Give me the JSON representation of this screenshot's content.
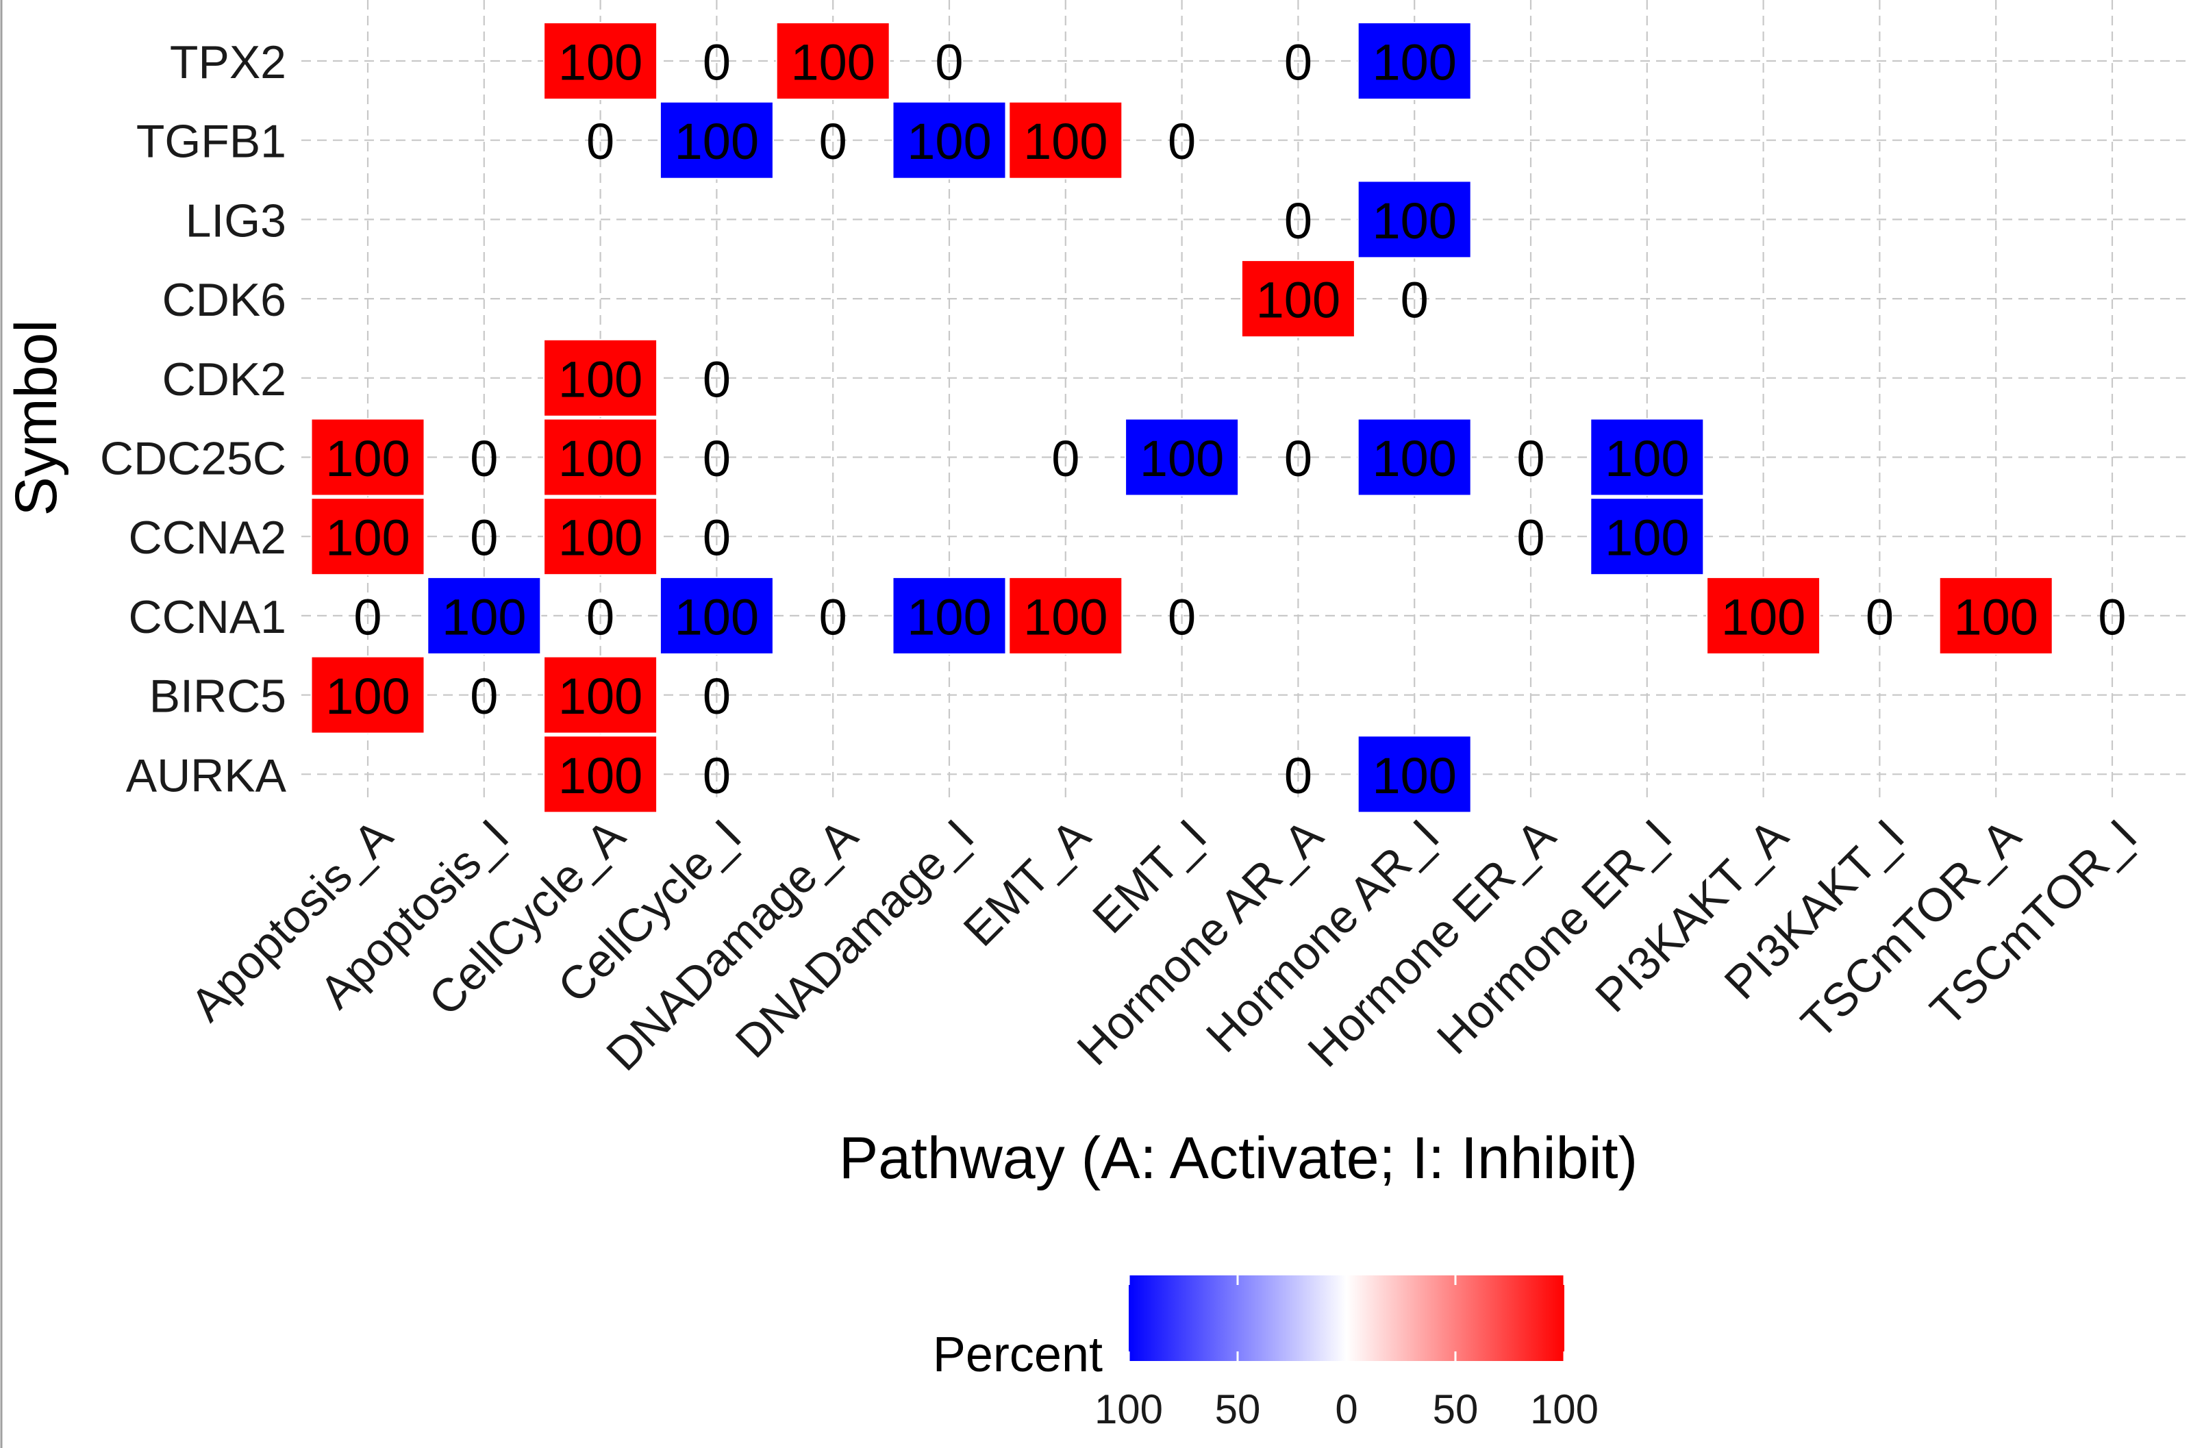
{
  "chart_data": {
    "type": "heatmap",
    "xlabel": "Pathway (A: Activate; I: Inhibit)",
    "ylabel": "Symbol",
    "x_categories": [
      "Apoptosis_A",
      "Apoptosis_I",
      "CellCycle_A",
      "CellCycle_I",
      "DNADamage_A",
      "DNADamage_I",
      "EMT_A",
      "EMT_I",
      "Hormone AR_A",
      "Hormone AR_I",
      "Hormone ER_A",
      "Hormone ER_I",
      "PI3KAKT_A",
      "PI3KAKT_I",
      "TSCmTOR_A",
      "TSCmTOR_I"
    ],
    "y_categories": [
      "TPX2",
      "TGFB1",
      "LIG3",
      "CDK6",
      "CDK2",
      "CDC25C",
      "CCNA2",
      "CCNA1",
      "BIRC5",
      "AURKA"
    ],
    "cells": [
      {
        "y": "TPX2",
        "x": "CellCycle_A",
        "value": 100,
        "direction": "activate",
        "label": "100"
      },
      {
        "y": "TPX2",
        "x": "CellCycle_I",
        "value": 0,
        "direction": "inhibit",
        "label": "0"
      },
      {
        "y": "TPX2",
        "x": "DNADamage_A",
        "value": 100,
        "direction": "activate",
        "label": "100"
      },
      {
        "y": "TPX2",
        "x": "DNADamage_I",
        "value": 0,
        "direction": "inhibit",
        "label": "0"
      },
      {
        "y": "TPX2",
        "x": "Hormone AR_A",
        "value": 0,
        "direction": "activate",
        "label": "0"
      },
      {
        "y": "TPX2",
        "x": "Hormone AR_I",
        "value": 100,
        "direction": "inhibit",
        "label": "100"
      },
      {
        "y": "TGFB1",
        "x": "CellCycle_A",
        "value": 0,
        "direction": "activate",
        "label": "0"
      },
      {
        "y": "TGFB1",
        "x": "CellCycle_I",
        "value": 100,
        "direction": "inhibit",
        "label": "100"
      },
      {
        "y": "TGFB1",
        "x": "DNADamage_A",
        "value": 0,
        "direction": "activate",
        "label": "0"
      },
      {
        "y": "TGFB1",
        "x": "DNADamage_I",
        "value": 100,
        "direction": "inhibit",
        "label": "100"
      },
      {
        "y": "TGFB1",
        "x": "EMT_A",
        "value": 100,
        "direction": "activate",
        "label": "100"
      },
      {
        "y": "TGFB1",
        "x": "EMT_I",
        "value": 0,
        "direction": "inhibit",
        "label": "0"
      },
      {
        "y": "LIG3",
        "x": "Hormone AR_A",
        "value": 0,
        "direction": "activate",
        "label": "0"
      },
      {
        "y": "LIG3",
        "x": "Hormone AR_I",
        "value": 100,
        "direction": "inhibit",
        "label": "100"
      },
      {
        "y": "CDK6",
        "x": "Hormone AR_A",
        "value": 100,
        "direction": "activate",
        "label": "100"
      },
      {
        "y": "CDK6",
        "x": "Hormone AR_I",
        "value": 0,
        "direction": "inhibit",
        "label": "0"
      },
      {
        "y": "CDK2",
        "x": "CellCycle_A",
        "value": 100,
        "direction": "activate",
        "label": "100"
      },
      {
        "y": "CDK2",
        "x": "CellCycle_I",
        "value": 0,
        "direction": "inhibit",
        "label": "0"
      },
      {
        "y": "CDC25C",
        "x": "Apoptosis_A",
        "value": 100,
        "direction": "activate",
        "label": "100"
      },
      {
        "y": "CDC25C",
        "x": "Apoptosis_I",
        "value": 0,
        "direction": "inhibit",
        "label": "0"
      },
      {
        "y": "CDC25C",
        "x": "CellCycle_A",
        "value": 100,
        "direction": "activate",
        "label": "100"
      },
      {
        "y": "CDC25C",
        "x": "CellCycle_I",
        "value": 0,
        "direction": "inhibit",
        "label": "0"
      },
      {
        "y": "CDC25C",
        "x": "EMT_A",
        "value": 0,
        "direction": "activate",
        "label": "0"
      },
      {
        "y": "CDC25C",
        "x": "EMT_I",
        "value": 100,
        "direction": "inhibit",
        "label": "100"
      },
      {
        "y": "CDC25C",
        "x": "Hormone AR_A",
        "value": 0,
        "direction": "activate",
        "label": "0"
      },
      {
        "y": "CDC25C",
        "x": "Hormone AR_I",
        "value": 100,
        "direction": "inhibit",
        "label": "100"
      },
      {
        "y": "CDC25C",
        "x": "Hormone ER_A",
        "value": 0,
        "direction": "activate",
        "label": "0"
      },
      {
        "y": "CDC25C",
        "x": "Hormone ER_I",
        "value": 100,
        "direction": "inhibit",
        "label": "100"
      },
      {
        "y": "CCNA2",
        "x": "Apoptosis_A",
        "value": 100,
        "direction": "activate",
        "label": "100"
      },
      {
        "y": "CCNA2",
        "x": "Apoptosis_I",
        "value": 0,
        "direction": "inhibit",
        "label": "0"
      },
      {
        "y": "CCNA2",
        "x": "CellCycle_A",
        "value": 100,
        "direction": "activate",
        "label": "100"
      },
      {
        "y": "CCNA2",
        "x": "CellCycle_I",
        "value": 0,
        "direction": "inhibit",
        "label": "0"
      },
      {
        "y": "CCNA2",
        "x": "Hormone ER_A",
        "value": 0,
        "direction": "activate",
        "label": "0"
      },
      {
        "y": "CCNA2",
        "x": "Hormone ER_I",
        "value": 100,
        "direction": "inhibit",
        "label": "100"
      },
      {
        "y": "CCNA1",
        "x": "Apoptosis_A",
        "value": 0,
        "direction": "activate",
        "label": "0"
      },
      {
        "y": "CCNA1",
        "x": "Apoptosis_I",
        "value": 100,
        "direction": "inhibit",
        "label": "100"
      },
      {
        "y": "CCNA1",
        "x": "CellCycle_A",
        "value": 0,
        "direction": "activate",
        "label": "0"
      },
      {
        "y": "CCNA1",
        "x": "CellCycle_I",
        "value": 100,
        "direction": "inhibit",
        "label": "100"
      },
      {
        "y": "CCNA1",
        "x": "DNADamage_A",
        "value": 0,
        "direction": "activate",
        "label": "0"
      },
      {
        "y": "CCNA1",
        "x": "DNADamage_I",
        "value": 100,
        "direction": "inhibit",
        "label": "100"
      },
      {
        "y": "CCNA1",
        "x": "EMT_A",
        "value": 100,
        "direction": "activate",
        "label": "100"
      },
      {
        "y": "CCNA1",
        "x": "EMT_I",
        "value": 0,
        "direction": "inhibit",
        "label": "0"
      },
      {
        "y": "CCNA1",
        "x": "PI3KAKT_A",
        "value": 100,
        "direction": "activate",
        "label": "100"
      },
      {
        "y": "CCNA1",
        "x": "PI3KAKT_I",
        "value": 0,
        "direction": "inhibit",
        "label": "0"
      },
      {
        "y": "CCNA1",
        "x": "TSCmTOR_A",
        "value": 100,
        "direction": "activate",
        "label": "100"
      },
      {
        "y": "CCNA1",
        "x": "TSCmTOR_I",
        "value": 0,
        "direction": "inhibit",
        "label": "0"
      },
      {
        "y": "BIRC5",
        "x": "Apoptosis_A",
        "value": 100,
        "direction": "activate",
        "label": "100"
      },
      {
        "y": "BIRC5",
        "x": "Apoptosis_I",
        "value": 0,
        "direction": "inhibit",
        "label": "0"
      },
      {
        "y": "BIRC5",
        "x": "CellCycle_A",
        "value": 100,
        "direction": "activate",
        "label": "100"
      },
      {
        "y": "BIRC5",
        "x": "CellCycle_I",
        "value": 0,
        "direction": "inhibit",
        "label": "0"
      },
      {
        "y": "AURKA",
        "x": "CellCycle_A",
        "value": 100,
        "direction": "activate",
        "label": "100"
      },
      {
        "y": "AURKA",
        "x": "CellCycle_I",
        "value": 0,
        "direction": "inhibit",
        "label": "0"
      },
      {
        "y": "AURKA",
        "x": "Hormone AR_A",
        "value": 0,
        "direction": "activate",
        "label": "0"
      },
      {
        "y": "AURKA",
        "x": "Hormone AR_I",
        "value": 100,
        "direction": "inhibit",
        "label": "100"
      }
    ],
    "legend": {
      "title": "Percent",
      "tick_labels": [
        "100",
        "50",
        "0",
        "50",
        "100"
      ],
      "scale": [
        -100,
        -50,
        0,
        50,
        100
      ],
      "low_color": "#0000ff",
      "mid_color": "#ffffff",
      "high_color": "#ff0000",
      "position": "bottom"
    },
    "grid": true
  }
}
